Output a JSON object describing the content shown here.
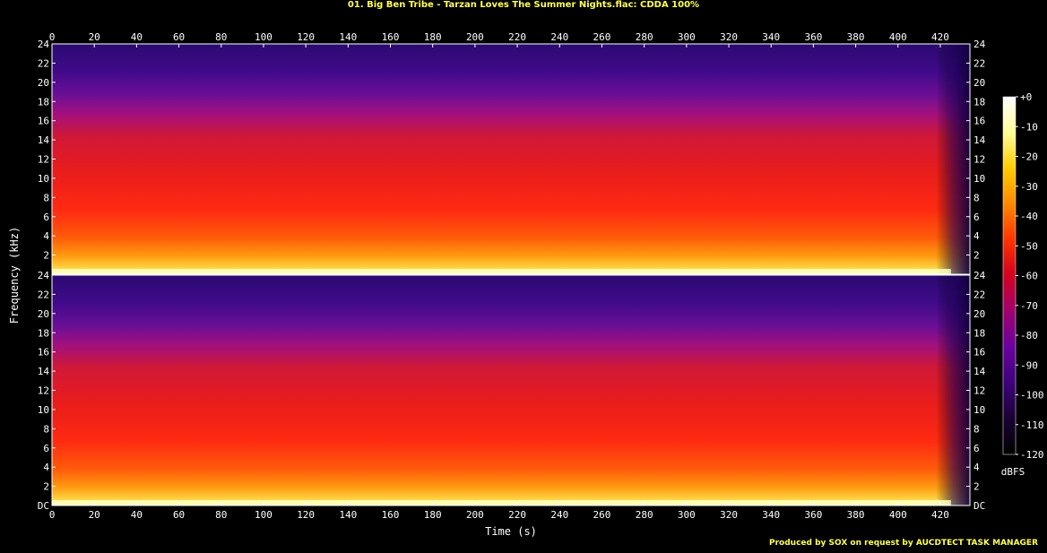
{
  "chart_data": {
    "type": "heatmap",
    "title": "01. Big Ben Tribe - Tarzan Loves The Summer Nights.flac: CDDA 100%",
    "xlabel": "Time (s)",
    "ylabel": "Frequency (kHz)",
    "x_ticks": [
      "0",
      "20",
      "40",
      "60",
      "80",
      "100",
      "120",
      "140",
      "160",
      "180",
      "200",
      "220",
      "240",
      "260",
      "280",
      "300",
      "320",
      "340",
      "360",
      "380",
      "400",
      "420"
    ],
    "xlim": [
      0,
      434
    ],
    "ylim": [
      0,
      24
    ],
    "channels": [
      {
        "y_ticks": [
          "24",
          "22",
          "20",
          "18",
          "16",
          "14",
          "12",
          "10",
          "8",
          "6",
          "4",
          "2"
        ]
      },
      {
        "y_ticks": [
          "24",
          "22",
          "20",
          "18",
          "16",
          "14",
          "12",
          "10",
          "8",
          "6",
          "4",
          "2",
          "DC"
        ]
      }
    ],
    "colorbar": {
      "label": "dBFS",
      "ticks": [
        "+0",
        "-10",
        "-20",
        "-30",
        "-40",
        "-50",
        "-60",
        "-70",
        "-80",
        "-90",
        "-100",
        "-110",
        "-120"
      ],
      "range": [
        -120,
        0
      ],
      "colors": [
        "#000000",
        "#1a0033",
        "#3d007a",
        "#6a00a0",
        "#a0006e",
        "#d40020",
        "#ff3300",
        "#ff8800",
        "#ffcc00",
        "#ffff99",
        "#ffffff"
      ]
    },
    "grid": false
  },
  "footer": "Produced by SOX on request by AUCDTECT TASK MANAGER"
}
